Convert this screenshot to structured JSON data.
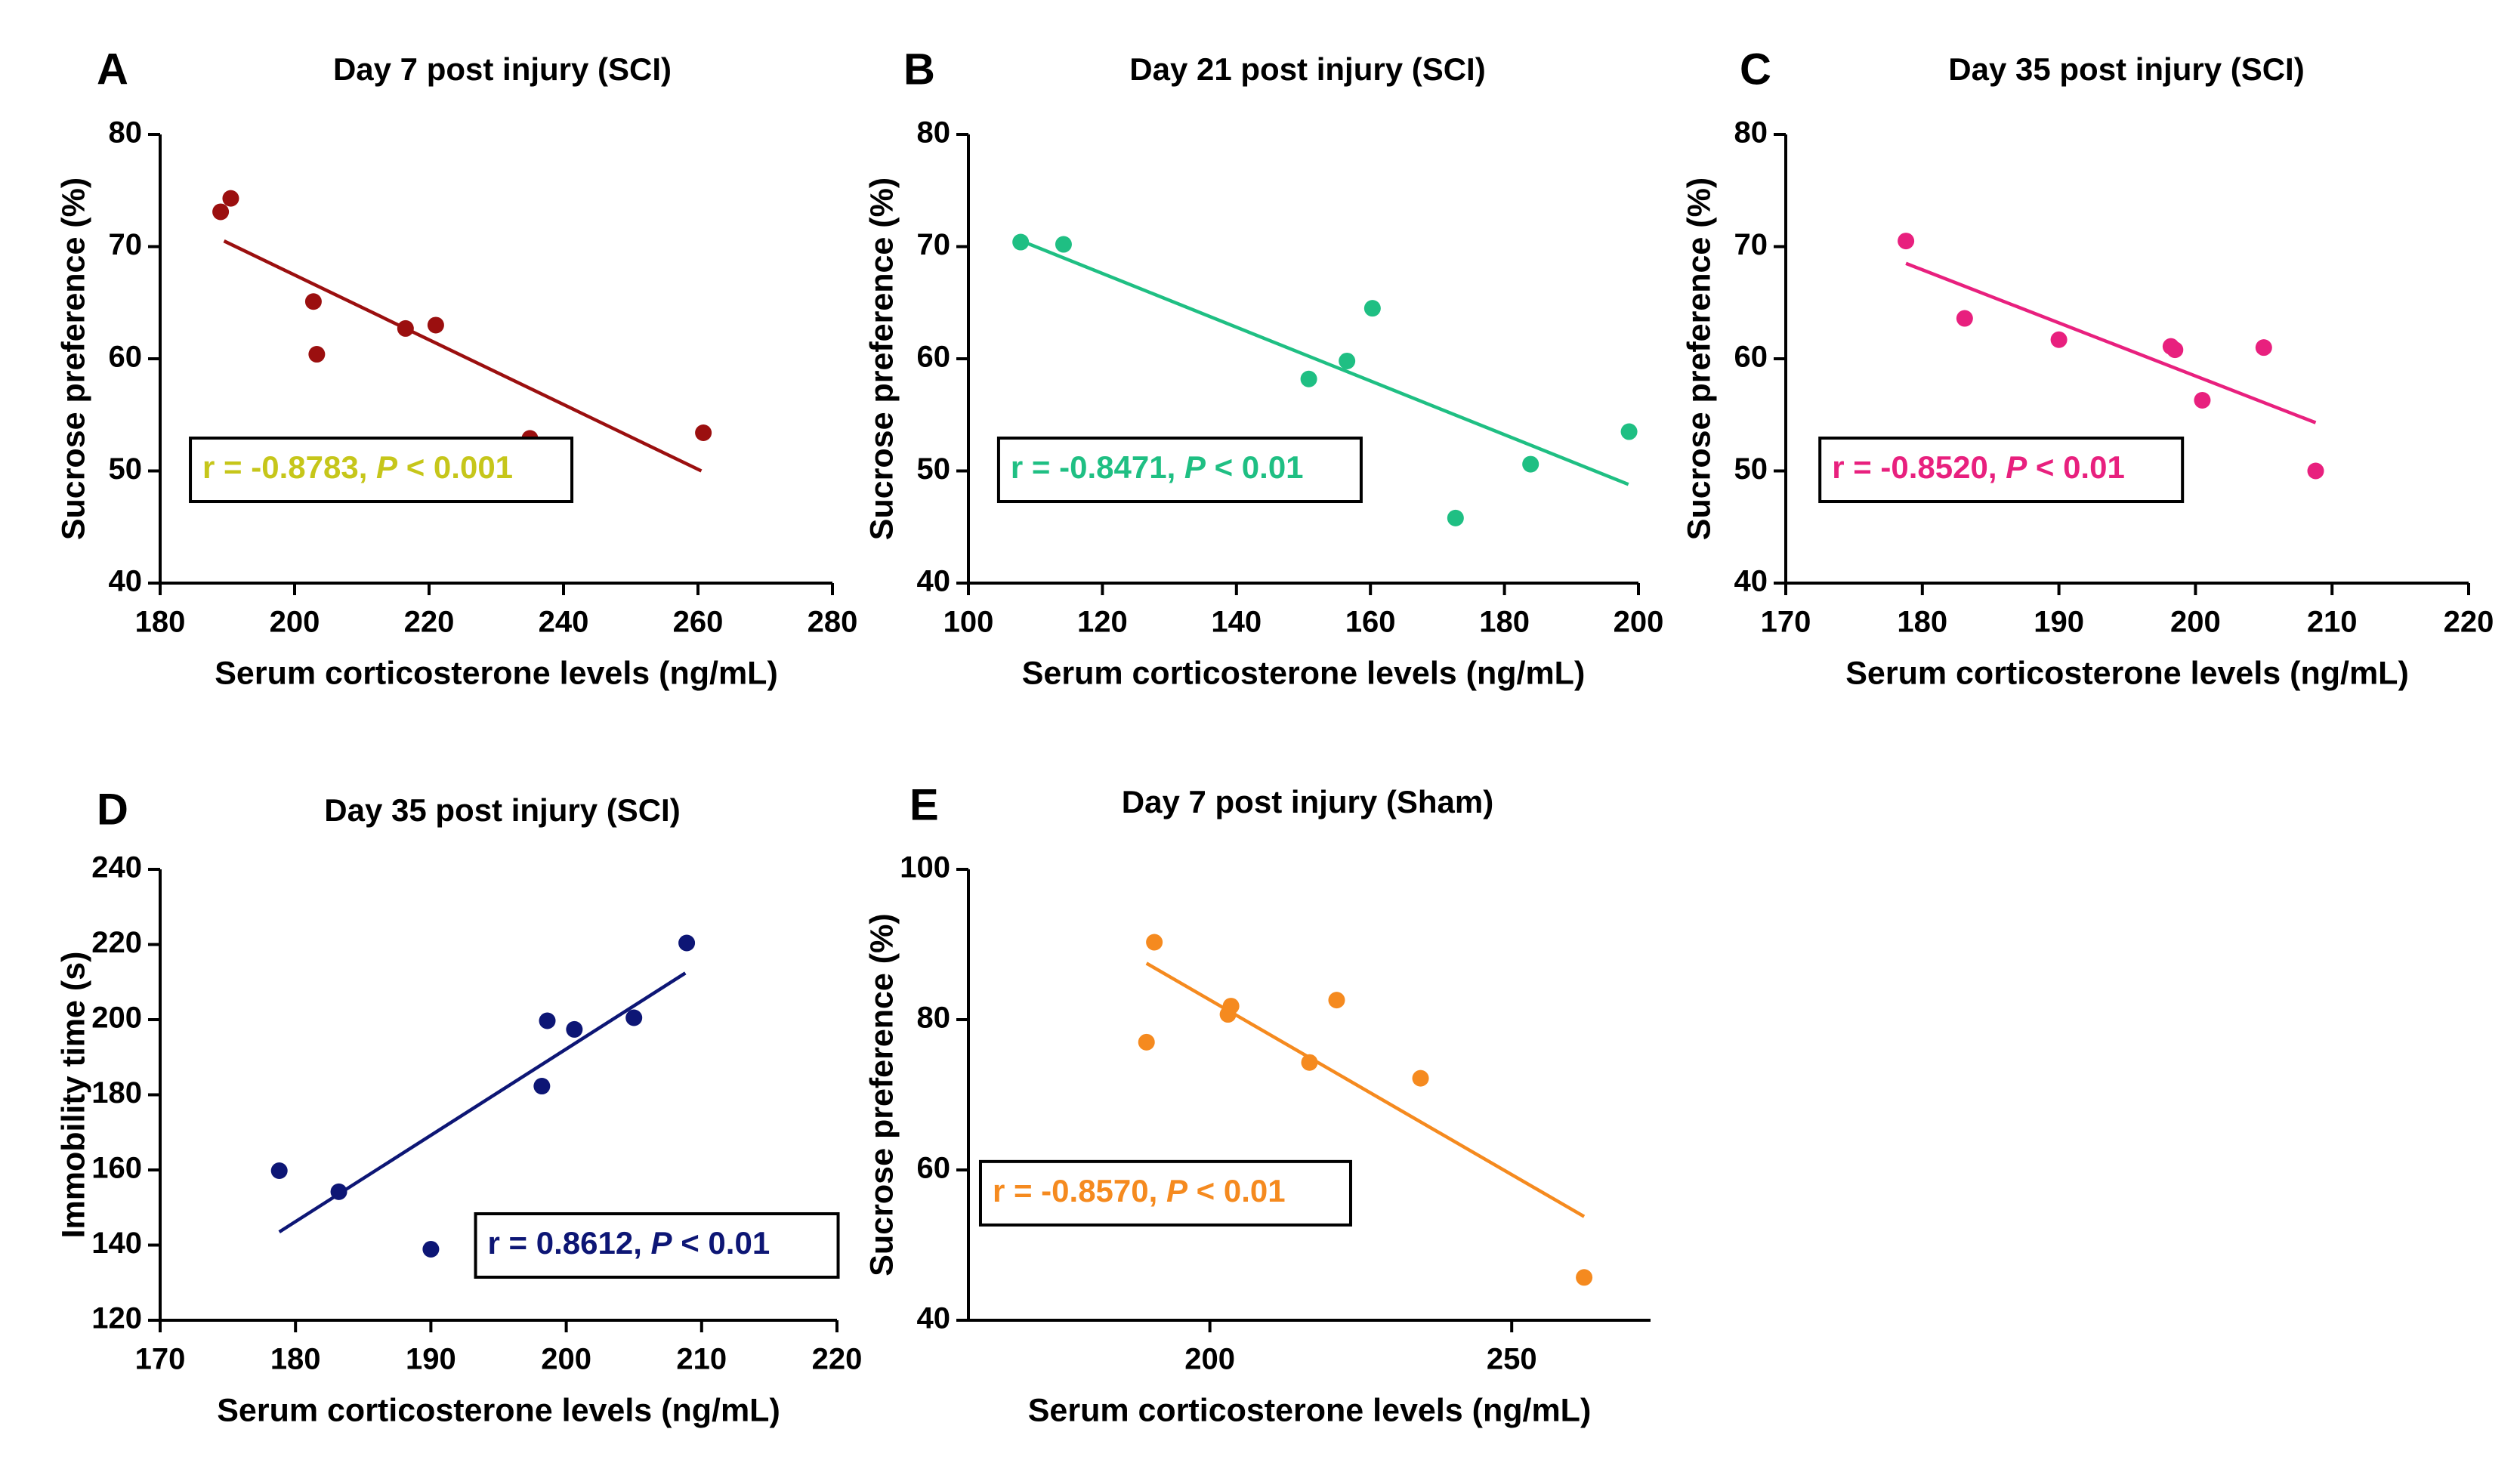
{
  "chart_data": [
    {
      "panel_label": "A",
      "type": "scatter",
      "title": "Day 7 post injury (SCI)",
      "xlabel": "Serum corticosterone levels (ng/mL)",
      "ylabel": "Sucrose preference (%)",
      "xlim": [
        180,
        280
      ],
      "ylim": [
        40,
        80
      ],
      "xticks": [
        180,
        200,
        220,
        240,
        260,
        280
      ],
      "yticks": [
        40,
        50,
        60,
        70,
        80
      ],
      "color": "#9b0f0f",
      "points": [
        {
          "x": 189.0,
          "y": 73.1
        },
        {
          "x": 190.5,
          "y": 74.3
        },
        {
          "x": 202.8,
          "y": 65.1
        },
        {
          "x": 203.3,
          "y": 60.4
        },
        {
          "x": 216.5,
          "y": 62.7
        },
        {
          "x": 221.0,
          "y": 63.0
        },
        {
          "x": 235.0,
          "y": 52.9
        },
        {
          "x": 260.8,
          "y": 53.4
        }
      ],
      "fit_line": {
        "x": [
          189.5,
          260.5
        ],
        "y": [
          70.5,
          50.0
        ]
      },
      "stat": {
        "r_part": "r = -0.8783, ",
        "p_symbol": "P",
        "p_part": " < 0.001",
        "color": "#c6c61a",
        "box_x": 184.5,
        "box_y": 50.1
      }
    },
    {
      "panel_label": "B",
      "type": "scatter",
      "title": "Day 21 post injury (SCI)",
      "xlabel": "Serum corticosterone levels (ng/mL)",
      "ylabel": "Sucrose preference (%)",
      "xlim": [
        100,
        200
      ],
      "ylim": [
        40,
        80
      ],
      "xticks": [
        100,
        120,
        140,
        160,
        180,
        200
      ],
      "yticks": [
        40,
        50,
        60,
        70,
        80
      ],
      "color": "#1fbf83",
      "points": [
        {
          "x": 107.8,
          "y": 70.4
        },
        {
          "x": 114.2,
          "y": 70.2
        },
        {
          "x": 150.8,
          "y": 58.2
        },
        {
          "x": 156.5,
          "y": 59.8
        },
        {
          "x": 160.3,
          "y": 64.5
        },
        {
          "x": 172.7,
          "y": 45.8
        },
        {
          "x": 183.9,
          "y": 50.6
        },
        {
          "x": 198.6,
          "y": 53.5
        }
      ],
      "fit_line": {
        "x": [
          107.5,
          198.5
        ],
        "y": [
          70.6,
          48.8
        ]
      },
      "stat": {
        "r_part": "r = -0.8471, ",
        "p_symbol": "P",
        "p_part": " < 0.01",
        "color": "#1fbf83",
        "box_x": 104.5,
        "box_y": 50.1
      }
    },
    {
      "panel_label": "C",
      "type": "scatter",
      "title": "Day 35 post injury (SCI)",
      "xlabel": "Serum corticosterone levels (ng/mL)",
      "ylabel": "Sucrose preference (%)",
      "xlim": [
        170,
        220
      ],
      "ylim": [
        40,
        80
      ],
      "xticks": [
        170,
        180,
        190,
        200,
        210,
        220
      ],
      "yticks": [
        40,
        50,
        60,
        70,
        80
      ],
      "color": "#e8207e",
      "points": [
        {
          "x": 178.8,
          "y": 70.5
        },
        {
          "x": 183.1,
          "y": 63.6
        },
        {
          "x": 190.0,
          "y": 61.7
        },
        {
          "x": 198.2,
          "y": 61.1
        },
        {
          "x": 198.5,
          "y": 60.8
        },
        {
          "x": 200.5,
          "y": 56.3
        },
        {
          "x": 205.0,
          "y": 61.0
        },
        {
          "x": 208.8,
          "y": 50.0
        }
      ],
      "fit_line": {
        "x": [
          178.8,
          208.8
        ],
        "y": [
          68.5,
          54.3
        ]
      },
      "stat": {
        "r_part": "r = -0.8520, ",
        "p_symbol": "P",
        "p_part": " < 0.01",
        "color": "#e8207e",
        "box_x": 172.5,
        "box_y": 50.1
      }
    },
    {
      "panel_label": "D",
      "type": "scatter",
      "title": "Day 35 post injury (SCI)",
      "xlabel": "Serum corticosterone levels (ng/mL)",
      "ylabel": "Immobility time (s)",
      "xlim": [
        170,
        220
      ],
      "ylim": [
        120,
        240
      ],
      "xticks": [
        170,
        180,
        190,
        200,
        210,
        220
      ],
      "yticks": [
        120,
        140,
        160,
        180,
        200,
        220,
        240
      ],
      "color": "#0d1675",
      "points": [
        {
          "x": 178.8,
          "y": 159.8
        },
        {
          "x": 183.2,
          "y": 154.2
        },
        {
          "x": 190.0,
          "y": 138.9
        },
        {
          "x": 198.2,
          "y": 182.3
        },
        {
          "x": 198.6,
          "y": 199.7
        },
        {
          "x": 200.6,
          "y": 197.4
        },
        {
          "x": 205.0,
          "y": 200.5
        },
        {
          "x": 208.9,
          "y": 220.4
        }
      ],
      "fit_line": {
        "x": [
          178.8,
          208.8
        ],
        "y": [
          143.5,
          212.4
        ]
      },
      "stat": {
        "r_part": "r = 0.8612, ",
        "p_symbol": "P",
        "p_part": " < 0.01",
        "color": "#0d1675",
        "box_x": 193.3,
        "box_y": 139.9
      }
    },
    {
      "panel_label": "E",
      "type": "scatter",
      "title": "Day 7 post injury (Sham)",
      "xlabel": "Serum corticosterone levels (ng/mL)",
      "ylabel": "Sucrose preference (%)",
      "xlim": [
        160,
        273
      ],
      "ylim": [
        40,
        100
      ],
      "xticks": [
        200,
        250
      ],
      "yticks": [
        40,
        60,
        80,
        100
      ],
      "color": "#f58a1f",
      "points": [
        {
          "x": 189.5,
          "y": 77.0
        },
        {
          "x": 190.8,
          "y": 90.3
        },
        {
          "x": 203.0,
          "y": 80.7
        },
        {
          "x": 203.5,
          "y": 81.8
        },
        {
          "x": 216.5,
          "y": 74.3
        },
        {
          "x": 221.0,
          "y": 82.6
        },
        {
          "x": 234.9,
          "y": 72.2
        },
        {
          "x": 262.0,
          "y": 45.7
        }
      ],
      "fit_line": {
        "x": [
          189.5,
          262.0
        ],
        "y": [
          87.5,
          53.8
        ]
      },
      "stat": {
        "r_part": "r = -0.8570, ",
        "p_symbol": "P",
        "p_part": " < 0.01",
        "color": "#f58a1f",
        "box_x": 162.0,
        "box_y": 56.9
      }
    }
  ]
}
